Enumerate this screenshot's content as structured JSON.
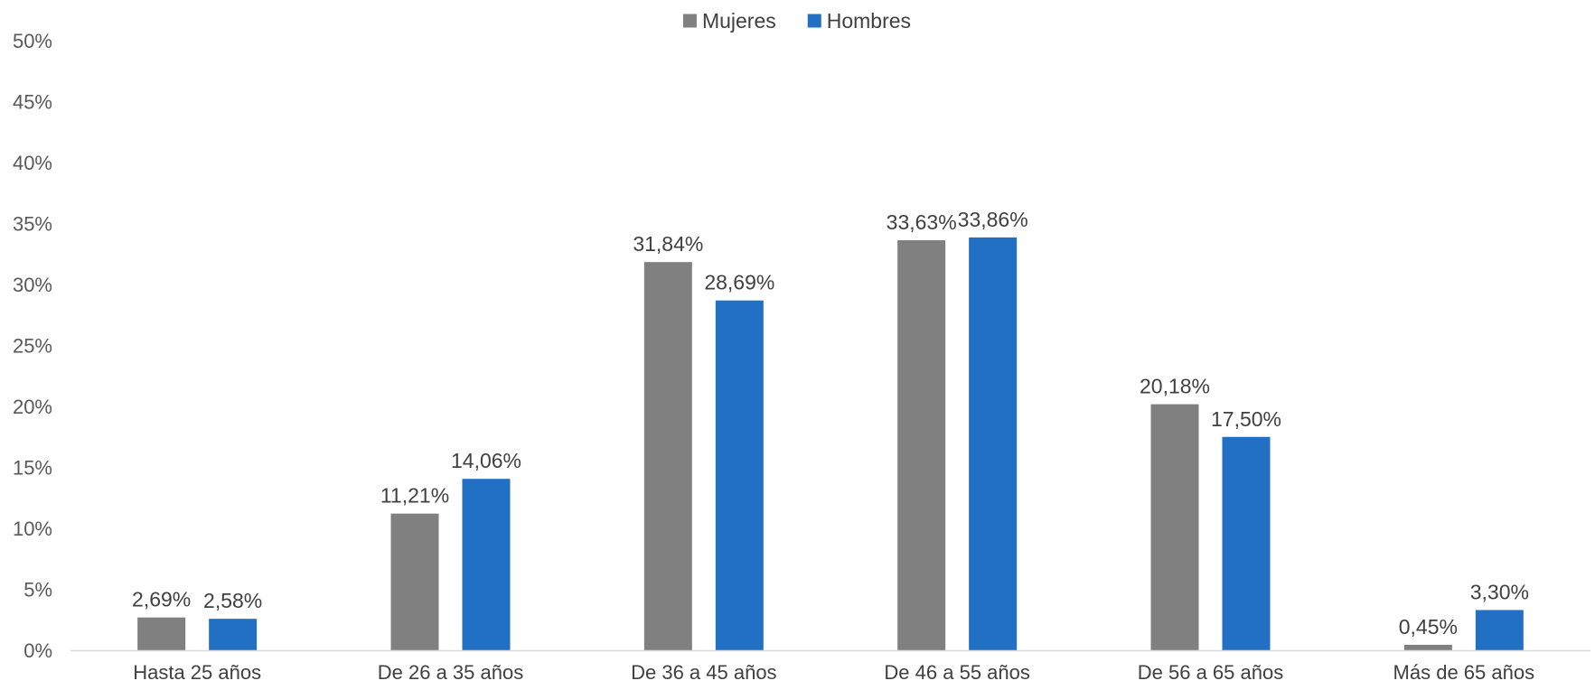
{
  "chart_data": {
    "type": "bar",
    "categories": [
      "Hasta 25 años",
      "De 26 a 35 años",
      "De 36 a 45 años",
      "De 46 a 55 años",
      "De 56 a 65 años",
      "Más de 65 años"
    ],
    "series": [
      {
        "name": "Mujeres",
        "color": "#808080",
        "values": [
          2.69,
          11.21,
          31.84,
          33.63,
          20.18,
          0.45
        ],
        "labels": [
          "2,69%",
          "11,21%",
          "31,84%",
          "33,63%",
          "20,18%",
          "0,45%"
        ]
      },
      {
        "name": "Hombres",
        "color": "#2270C4",
        "values": [
          2.58,
          14.06,
          28.69,
          33.86,
          17.5,
          3.3
        ],
        "labels": [
          "2,58%",
          "14,06%",
          "28,69%",
          "33,86%",
          "17,50%",
          "3,30%"
        ]
      }
    ],
    "yticks": [
      "0%",
      "5%",
      "10%",
      "15%",
      "20%",
      "25%",
      "30%",
      "35%",
      "40%",
      "45%",
      "50%"
    ],
    "ylim": [
      0,
      50
    ],
    "title": "",
    "xlabel": "",
    "ylabel": "",
    "grid": false,
    "legend_position": "top-center"
  }
}
